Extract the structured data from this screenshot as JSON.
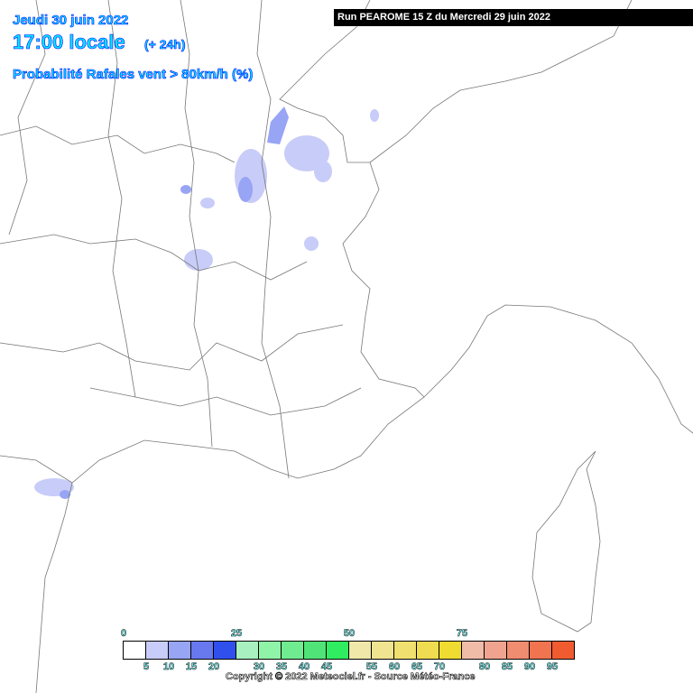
{
  "header": {
    "date": "Jeudi 30 juin 2022",
    "time": "17:00 locale",
    "lead": "(+ 24h)",
    "parameter": "Probabilité Rafales vent > 80km/h (%)",
    "run": "Run PEAROME 15 Z du Mercredi 29 juin 2022"
  },
  "legend": {
    "top_labels": [
      "0",
      "25",
      "50",
      "75"
    ],
    "bottom_labels": [
      "5",
      "10",
      "15",
      "20",
      "30",
      "35",
      "40",
      "45",
      "55",
      "60",
      "65",
      "70",
      "80",
      "85",
      "90",
      "95"
    ],
    "colors": [
      "#ffffff",
      "#c8ccf8",
      "#98a4f4",
      "#6878ee",
      "#3050ee",
      "#a8f0c0",
      "#90f4a8",
      "#70ec90",
      "#50e478",
      "#30ec60",
      "#f0e8a8",
      "#f0e490",
      "#f0e070",
      "#f0dc50",
      "#f0dc30",
      "#f0bca8",
      "#f0a490",
      "#f08c70",
      "#f07450",
      "#f05c30"
    ]
  },
  "copyright": "Copyright © 2022 Meteociel.fr - Source Météo-France"
}
